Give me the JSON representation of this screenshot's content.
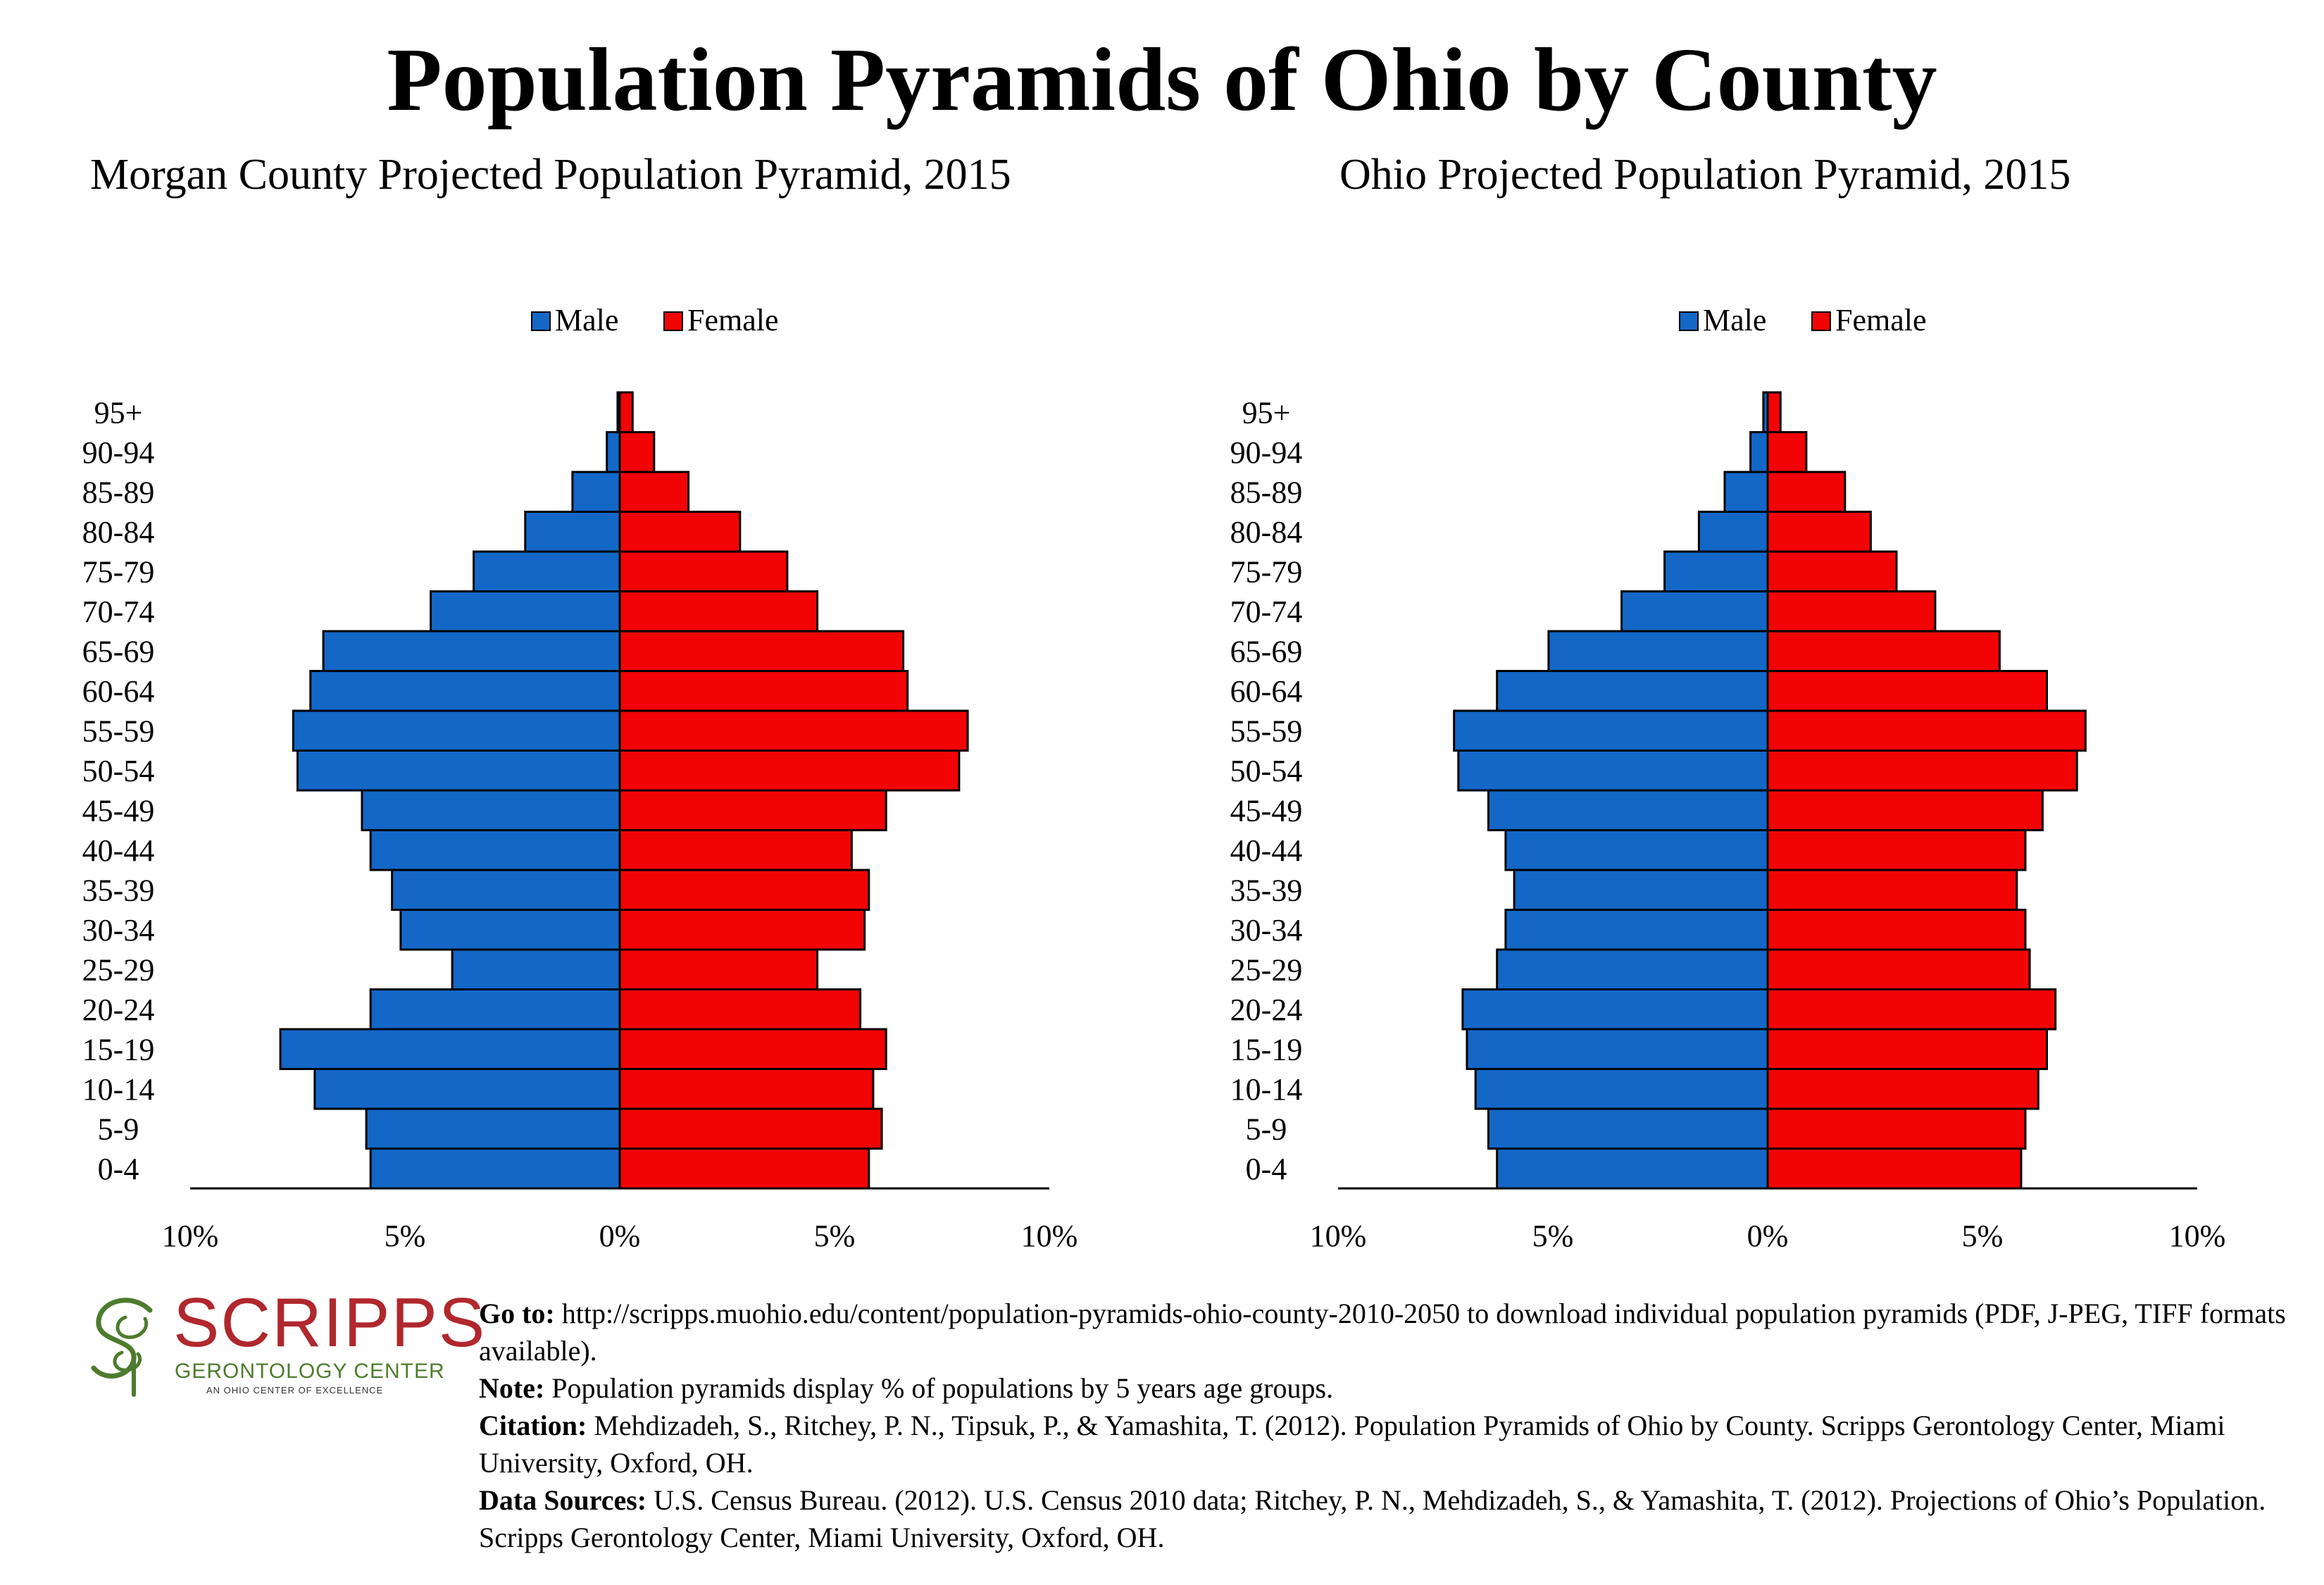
{
  "title": "Population Pyramids of Ohio by County",
  "colors": {
    "male": "#1367c7",
    "female": "#f20404",
    "outline": "#000000"
  },
  "chart_data": [
    {
      "type": "bar",
      "orientation": "horizontal",
      "title": "Morgan County Projected Population Pyramid, 2015",
      "categories": [
        "0-4",
        "5-9",
        "10-14",
        "15-19",
        "20-24",
        "25-29",
        "30-34",
        "35-39",
        "40-44",
        "45-49",
        "50-54",
        "55-59",
        "60-64",
        "65-69",
        "70-74",
        "75-79",
        "80-84",
        "85-89",
        "90-94",
        "95+"
      ],
      "series": [
        {
          "name": "Male",
          "values": [
            5.8,
            5.9,
            7.1,
            7.9,
            5.8,
            3.9,
            5.1,
            5.3,
            5.8,
            6.0,
            7.5,
            7.6,
            7.2,
            6.9,
            4.4,
            3.4,
            2.2,
            1.1,
            0.3,
            0.05
          ]
        },
        {
          "name": "Female",
          "values": [
            5.8,
            6.1,
            5.9,
            6.2,
            5.6,
            4.6,
            5.7,
            5.8,
            5.4,
            6.2,
            7.9,
            8.1,
            6.7,
            6.6,
            4.6,
            3.9,
            2.8,
            1.6,
            0.8,
            0.3
          ]
        }
      ],
      "legend": [
        "Male",
        "Female"
      ],
      "legend_position": "top-center",
      "xlim": [
        -10,
        10
      ],
      "ticks": [
        "10%",
        "5%",
        "0%",
        "5%",
        "10%"
      ],
      "grid": false
    },
    {
      "type": "bar",
      "orientation": "horizontal",
      "title": "Ohio Projected Population Pyramid, 2015",
      "categories": [
        "0-4",
        "5-9",
        "10-14",
        "15-19",
        "20-24",
        "25-29",
        "30-34",
        "35-39",
        "40-44",
        "45-49",
        "50-54",
        "55-59",
        "60-64",
        "65-69",
        "70-74",
        "75-79",
        "80-84",
        "85-89",
        "90-94",
        "95+"
      ],
      "series": [
        {
          "name": "Male",
          "values": [
            6.3,
            6.5,
            6.8,
            7.0,
            7.1,
            6.3,
            6.1,
            5.9,
            6.1,
            6.5,
            7.2,
            7.3,
            6.3,
            5.1,
            3.4,
            2.4,
            1.6,
            1.0,
            0.4,
            0.1
          ]
        },
        {
          "name": "Female",
          "values": [
            5.9,
            6.0,
            6.3,
            6.5,
            6.7,
            6.1,
            6.0,
            5.8,
            6.0,
            6.4,
            7.2,
            7.4,
            6.5,
            5.4,
            3.9,
            3.0,
            2.4,
            1.8,
            0.9,
            0.3
          ]
        }
      ],
      "legend": [
        "Male",
        "Female"
      ],
      "legend_position": "top-center",
      "xlim": [
        -10,
        10
      ],
      "ticks": [
        "10%",
        "5%",
        "0%",
        "5%",
        "10%"
      ],
      "grid": false
    }
  ],
  "logo": {
    "name": "SCRIPPS",
    "subtitle": "GERONTOLOGY CENTER",
    "tagline": "AN OHIO CENTER OF EXCELLENCE",
    "red": "#b0282d",
    "green": "#4e7b2d"
  },
  "notes": {
    "goto_label": "Go to:",
    "goto_text": " http://scripps.muohio.edu/content/population-pyramids-ohio-county-2010-2050 to download individual population pyramids (PDF, J-PEG, TIFF formats available).",
    "note_label": "Note:",
    "note_text": " Population pyramids display % of populations by 5 years age groups.",
    "citation_label": "Citation:",
    "citation_text": " Mehdizadeh, S., Ritchey, P. N., Tipsuk, P., & Yamashita, T. (2012). Population Pyramids of Ohio by County. Scripps Gerontology Center, Miami University, Oxford, OH.",
    "sources_label": "Data Sources:",
    "sources_text": " U.S. Census Bureau. (2012). U.S. Census 2010 data; Ritchey, P. N., Mehdizadeh, S., & Yamashita, T. (2012). Projections of Ohio’s Population. Scripps Gerontology Center, Miami University, Oxford, OH."
  }
}
